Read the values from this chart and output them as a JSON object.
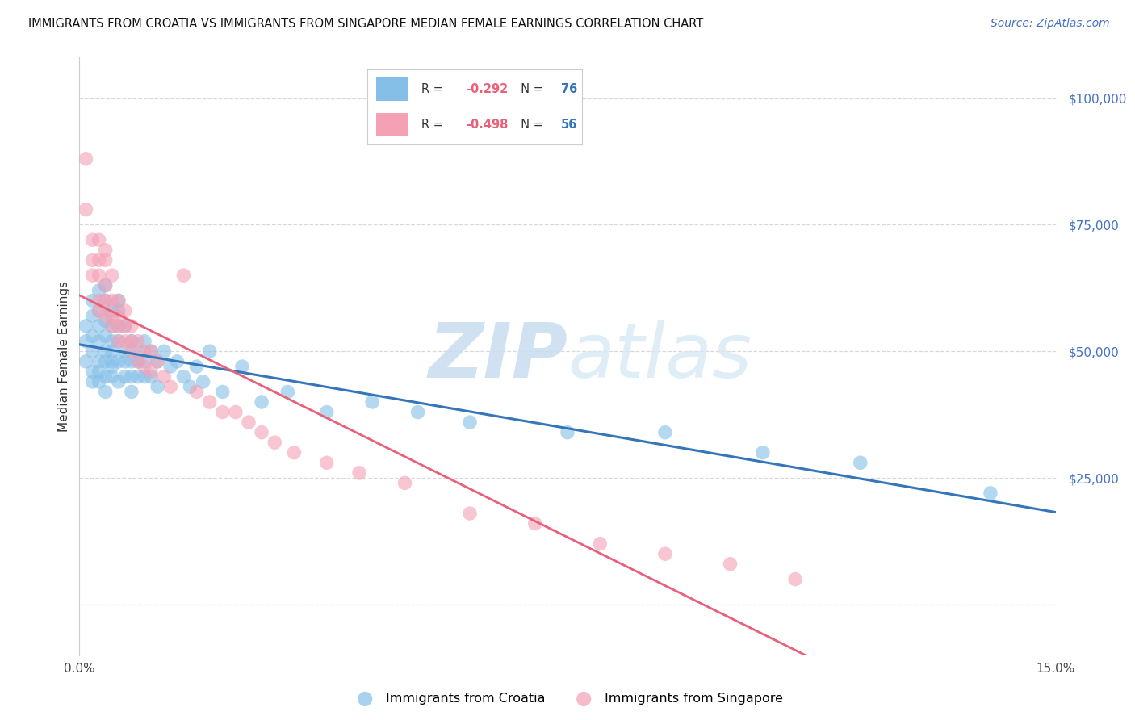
{
  "title": "IMMIGRANTS FROM CROATIA VS IMMIGRANTS FROM SINGAPORE MEDIAN FEMALE EARNINGS CORRELATION CHART",
  "source": "Source: ZipAtlas.com",
  "ylabel": "Median Female Earnings",
  "xlim": [
    0.0,
    0.15
  ],
  "ylim": [
    -10000,
    108000
  ],
  "yticks": [
    0,
    25000,
    50000,
    75000,
    100000
  ],
  "xticks": [
    0.0,
    0.05,
    0.1,
    0.15
  ],
  "xtick_labels": [
    "0.0%",
    "",
    "",
    "15.0%"
  ],
  "croatia_color": "#85bfe8",
  "singapore_color": "#f4a0b5",
  "croatia_line_color": "#3476b8",
  "singapore_line_color": "#e8607a",
  "croatia_R": -0.292,
  "croatia_N": 76,
  "singapore_R": -0.498,
  "singapore_N": 56,
  "watermark_zip": "ZIP",
  "watermark_atlas": "atlas",
  "background_color": "#ffffff",
  "grid_color": "#d8d8d8",
  "croatia_x": [
    0.001,
    0.001,
    0.001,
    0.002,
    0.002,
    0.002,
    0.002,
    0.002,
    0.002,
    0.003,
    0.003,
    0.003,
    0.003,
    0.003,
    0.003,
    0.003,
    0.004,
    0.004,
    0.004,
    0.004,
    0.004,
    0.004,
    0.004,
    0.004,
    0.005,
    0.005,
    0.005,
    0.005,
    0.005,
    0.005,
    0.005,
    0.006,
    0.006,
    0.006,
    0.006,
    0.006,
    0.006,
    0.007,
    0.007,
    0.007,
    0.007,
    0.008,
    0.008,
    0.008,
    0.008,
    0.009,
    0.009,
    0.009,
    0.01,
    0.01,
    0.01,
    0.011,
    0.011,
    0.012,
    0.012,
    0.013,
    0.014,
    0.015,
    0.016,
    0.017,
    0.018,
    0.019,
    0.02,
    0.022,
    0.025,
    0.028,
    0.032,
    0.038,
    0.045,
    0.052,
    0.06,
    0.075,
    0.09,
    0.105,
    0.12,
    0.14
  ],
  "croatia_y": [
    48000,
    52000,
    55000,
    46000,
    50000,
    53000,
    57000,
    60000,
    44000,
    48000,
    52000,
    55000,
    58000,
    62000,
    46000,
    44000,
    50000,
    53000,
    56000,
    60000,
    63000,
    48000,
    45000,
    42000,
    55000,
    58000,
    50000,
    47000,
    52000,
    45000,
    48000,
    55000,
    58000,
    60000,
    52000,
    48000,
    44000,
    55000,
    50000,
    48000,
    45000,
    52000,
    48000,
    45000,
    42000,
    50000,
    48000,
    45000,
    52000,
    48000,
    45000,
    50000,
    45000,
    48000,
    43000,
    50000,
    47000,
    48000,
    45000,
    43000,
    47000,
    44000,
    50000,
    42000,
    47000,
    40000,
    42000,
    38000,
    40000,
    38000,
    36000,
    34000,
    34000,
    30000,
    28000,
    22000
  ],
  "singapore_x": [
    0.001,
    0.001,
    0.002,
    0.002,
    0.002,
    0.003,
    0.003,
    0.003,
    0.003,
    0.003,
    0.004,
    0.004,
    0.004,
    0.004,
    0.004,
    0.005,
    0.005,
    0.005,
    0.005,
    0.006,
    0.006,
    0.006,
    0.006,
    0.007,
    0.007,
    0.007,
    0.008,
    0.008,
    0.008,
    0.009,
    0.009,
    0.01,
    0.01,
    0.011,
    0.011,
    0.012,
    0.013,
    0.014,
    0.016,
    0.018,
    0.02,
    0.022,
    0.024,
    0.026,
    0.028,
    0.03,
    0.033,
    0.038,
    0.043,
    0.05,
    0.06,
    0.07,
    0.08,
    0.09,
    0.1,
    0.11
  ],
  "singapore_y": [
    88000,
    78000,
    72000,
    68000,
    65000,
    72000,
    68000,
    65000,
    60000,
    58000,
    70000,
    68000,
    63000,
    60000,
    57000,
    65000,
    60000,
    57000,
    55000,
    60000,
    57000,
    55000,
    52000,
    58000,
    55000,
    52000,
    55000,
    52000,
    50000,
    52000,
    48000,
    50000,
    47000,
    50000,
    46000,
    48000,
    45000,
    43000,
    65000,
    42000,
    40000,
    38000,
    38000,
    36000,
    34000,
    32000,
    30000,
    28000,
    26000,
    24000,
    18000,
    16000,
    12000,
    10000,
    8000,
    5000
  ]
}
